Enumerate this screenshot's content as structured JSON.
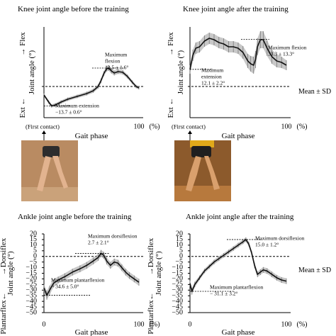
{
  "legend_text": "Mean ± SD",
  "colors": {
    "mean": "#111111",
    "sd": "#9a9a9a",
    "axis": "#000000"
  },
  "photos": {
    "left": {
      "bg": "#b98b62",
      "floor": "#caa27a",
      "leg": "#e2b38f",
      "shorts": "#2d2d2d"
    },
    "right": {
      "bg": "#8c5a2c",
      "floor": "#b7793d",
      "leg": "#d9a06d",
      "shorts": "#1f1f1f",
      "shirt": "#e0a91a"
    }
  },
  "chart_data": [
    {
      "id": "knee-before",
      "type": "line",
      "title": "Knee joint angle before the training",
      "xlabel": "Gait phase",
      "x_unit": "(%)",
      "ylabel": "Joint angle (°)",
      "y_top": "→ Flex",
      "y_bottom": "Ext ←",
      "x_tick_labels": [
        "100"
      ],
      "y_tick_labels": [],
      "xlim": [
        0,
        100
      ],
      "ylim": [
        -22,
        42
      ],
      "below_axis": "(First contact)",
      "annotations": [
        {
          "lines": [
            "Maximum",
            "flexion",
            "12.5 ± 1.6°"
          ],
          "x": 72,
          "y": 18,
          "pointer_y": 13
        },
        {
          "lines": [
            "Maximum extension",
            "−13.7 ± 0.6°"
          ],
          "x": 0,
          "y": -17,
          "pointer_y": -13.7
        }
      ],
      "series": [
        {
          "x": [
            0,
            5,
            8,
            12,
            18,
            25,
            35,
            45,
            52,
            57,
            60,
            63,
            66,
            68,
            71,
            74,
            78,
            83,
            88,
            93,
            97,
            100
          ],
          "y": [
            -6,
            -11,
            -13.7,
            -13,
            -11,
            -9,
            -7,
            -5,
            -3,
            0,
            4,
            9,
            12.5,
            13,
            11,
            9.5,
            10.5,
            10,
            7,
            3,
            0,
            -1
          ],
          "sd": [
            1.0,
            1.2,
            1.2,
            1.2,
            1.2,
            1.2,
            1.2,
            1.3,
            1.4,
            1.5,
            1.7,
            1.8,
            1.9,
            1.9,
            1.8,
            1.7,
            1.6,
            1.5,
            1.4,
            1.3,
            1.2,
            1.1
          ]
        }
      ]
    },
    {
      "id": "knee-after",
      "type": "line",
      "title": "Knee joint angle after the training",
      "xlabel": "Gait phase",
      "x_unit": "(%)",
      "ylabel": "Joint angle (°)",
      "y_top": "→ Flex",
      "y_bottom": "Ext ←",
      "x_tick_labels": [
        "100"
      ],
      "y_tick_labels": [],
      "xlim": [
        0,
        100
      ],
      "ylim": [
        -22,
        42
      ],
      "below_axis": "(First contact)",
      "annotations": [
        {
          "lines": [
            "Maximum flexion",
            "33.3 ± 13.3°"
          ],
          "x": 70,
          "y": 33.3,
          "pointer_y": 33.3
        },
        {
          "lines": [
            "Maximum",
            "extension",
            "12.1 ± 2.2°"
          ],
          "x": 0,
          "y": 12.1,
          "pointer_y": 12.1
        }
      ],
      "series": [
        {
          "x": [
            0,
            3,
            6,
            10,
            15,
            20,
            25,
            30,
            35,
            40,
            45,
            50,
            55,
            60,
            63,
            66,
            68,
            70,
            73,
            76,
            80,
            85,
            90,
            95,
            100
          ],
          "y": [
            12,
            22,
            27,
            28,
            32,
            34,
            33,
            31,
            30,
            28,
            28,
            27,
            24,
            18,
            16,
            15,
            19,
            28,
            33,
            33,
            27,
            21,
            18,
            17,
            15
          ],
          "sd": [
            3,
            4,
            4,
            4,
            4,
            4,
            4,
            4,
            4,
            4,
            4,
            4,
            4.5,
            5,
            5.5,
            6,
            6,
            6,
            6,
            6,
            5.5,
            5,
            4.5,
            4,
            3.5
          ]
        }
      ]
    },
    {
      "id": "ankle-before",
      "type": "line",
      "title": "Ankle joint angle before the training",
      "xlabel": "Gait phase",
      "x_unit": "(%)",
      "ylabel": "Joint angle (°)",
      "y_top": "→Dorsiflex",
      "y_bottom": "Plantarflex←",
      "x_tick_labels": [
        "0",
        "100"
      ],
      "y_tick_labels": [
        "20",
        "15",
        "10",
        "5",
        "0",
        "−5",
        "−10",
        "−15",
        "−20",
        "−25",
        "−30",
        "−35",
        "−40",
        "−45",
        "−50"
      ],
      "y_ticks": [
        20,
        15,
        10,
        5,
        0,
        -5,
        -10,
        -15,
        -20,
        -25,
        -30,
        -35,
        -40,
        -45,
        -50
      ],
      "xlim": [
        0,
        100
      ],
      "ylim": [
        -50,
        20
      ],
      "annotations": [
        {
          "lines": [
            "Maximum dorsiflexion",
            "2.7 ± 2.1°"
          ],
          "x": 60,
          "y": 2.7,
          "pointer_y": 2.7
        },
        {
          "lines": [
            "Maximum plantarflexion",
            "− 34.6 ± 5.0°"
          ],
          "x": 0,
          "y": -34.6,
          "pointer_y": -34.6
        }
      ],
      "series": [
        {
          "x": [
            0,
            3,
            6,
            10,
            15,
            22,
            30,
            38,
            45,
            52,
            57,
            60,
            63,
            66,
            70,
            74,
            78,
            82,
            86,
            90,
            95,
            100
          ],
          "y": [
            -28,
            -34.6,
            -30,
            -24,
            -21,
            -18,
            -14,
            -11,
            -8,
            -4,
            -1,
            2.7,
            1,
            -4,
            -8,
            -5,
            -6,
            -10,
            -14,
            -17,
            -20,
            -23
          ],
          "sd": [
            3,
            4,
            4,
            3.5,
            3,
            3,
            3,
            3,
            3,
            3,
            3,
            3,
            3,
            3,
            3,
            3,
            3,
            3,
            3,
            3,
            3,
            3
          ]
        }
      ]
    },
    {
      "id": "ankle-after",
      "type": "line",
      "title": "Ankle joint angle after the training",
      "xlabel": "Gait phase",
      "x_unit": "(%)",
      "ylabel": "Joint angle (°)",
      "y_top": "→Dorsiflex",
      "y_bottom": "Plantarflex←",
      "x_tick_labels": [
        "0",
        "100"
      ],
      "y_tick_labels": [
        "20",
        "15",
        "10",
        "5",
        "0",
        "−5",
        "−10",
        "−15",
        "−20",
        "−25",
        "−30",
        "−35",
        "−40",
        "−45",
        "−50"
      ],
      "y_ticks": [
        20,
        15,
        10,
        5,
        0,
        -5,
        -10,
        -15,
        -20,
        -25,
        -30,
        -35,
        -40,
        -45,
        -50
      ],
      "xlim": [
        0,
        100
      ],
      "ylim": [
        -50,
        20
      ],
      "annotations": [
        {
          "lines": [
            "Maximum dorsiflexion",
            "15.0 ± 1.2°"
          ],
          "x": 60,
          "y": 15,
          "pointer_y": 15
        },
        {
          "lines": [
            "Maximum plantarflexion",
            "− 31.1 ± 3.2°"
          ],
          "x": 0,
          "y": -31.1,
          "pointer_y": -31.1
        }
      ],
      "series": [
        {
          "x": [
            0,
            2,
            5,
            10,
            15,
            20,
            25,
            30,
            35,
            40,
            45,
            50,
            55,
            58,
            61,
            64,
            67,
            70,
            73,
            76,
            80,
            85,
            90,
            95,
            100
          ],
          "y": [
            -24,
            -31.1,
            -25,
            -19,
            -13,
            -9,
            -5,
            -2,
            1,
            4,
            7,
            10,
            13,
            15,
            11,
            3,
            -8,
            -16,
            -14,
            -12,
            -13,
            -16,
            -19,
            -21,
            -22
          ],
          "sd": [
            2.5,
            3,
            2.5,
            2,
            2,
            2,
            2,
            2,
            2,
            2,
            2,
            2,
            2,
            2,
            2,
            2,
            2.5,
            2.5,
            2.5,
            2.5,
            2.5,
            2.5,
            2.5,
            2.5,
            2.5
          ]
        }
      ]
    }
  ]
}
